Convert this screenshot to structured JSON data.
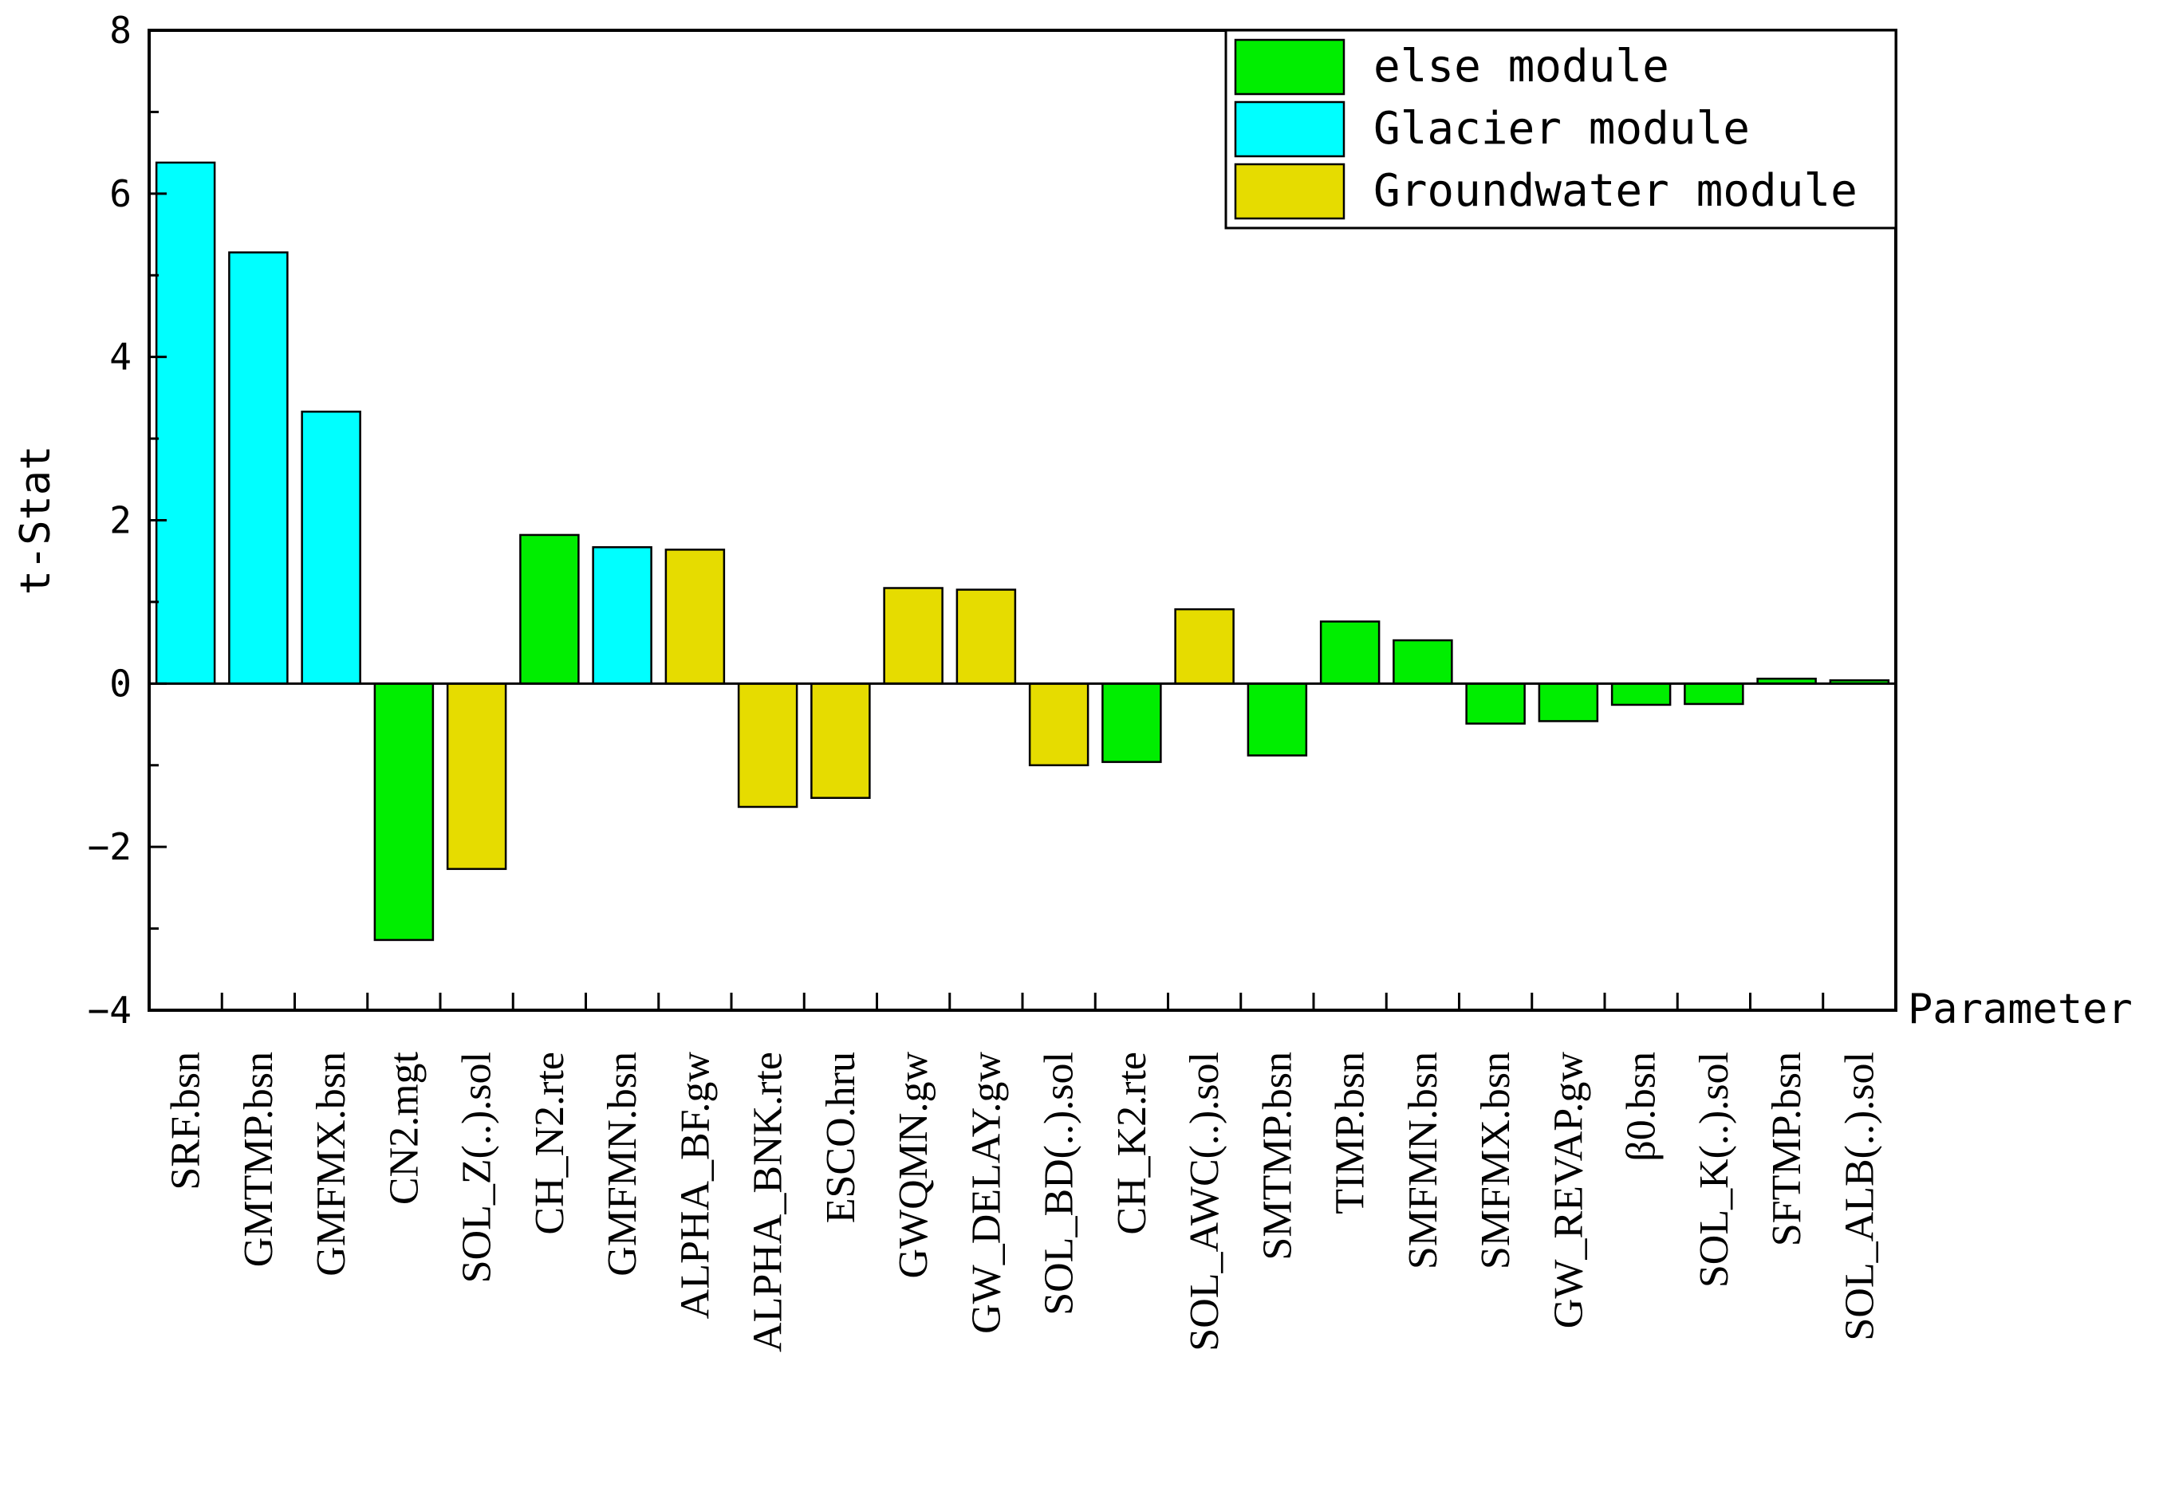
{
  "chart_data": {
    "type": "bar",
    "title": "",
    "xlabel": "Parameter",
    "ylabel": "t-Stat",
    "ylim": [
      -4,
      8
    ],
    "yticks": [
      -4,
      -2,
      0,
      2,
      4,
      6,
      8
    ],
    "ytick_labels": [
      "−4",
      "−2",
      "0",
      "2",
      "4",
      "6",
      "8"
    ],
    "grid": false,
    "legend_position": "top-right",
    "colors": {
      "else": "#00ee00",
      "glacier": "#00ffff",
      "groundwater": "#e6dc00",
      "axis": "#000000"
    },
    "legend": [
      {
        "key": "else",
        "label": "else module"
      },
      {
        "key": "glacier",
        "label": "Glacier module"
      },
      {
        "key": "groundwater",
        "label": "Groundwater module"
      }
    ],
    "categories": [
      "SRF.bsn",
      "GMTMP.bsn",
      "GMFMX.bsn",
      "CN2.mgt",
      "SOL_Z(..).sol",
      "CH_N2.rte",
      "GMFMN.bsn",
      "ALPHA_BF.gw",
      "ALPHA_BNK.rte",
      "ESCO.hru",
      "GWQMN.gw",
      "GW_DELAY.gw",
      "SOL_BD(..).sol",
      "CH_K2.rte",
      "SOL_AWC(..).sol",
      "SMTMP.bsn",
      "TIMP.bsn",
      "SMFMN.bsn",
      "SMFMX.bsn",
      "GW_REVAP.gw",
      "β0.bsn",
      "SOL_K(..).sol",
      "SFTMP.bsn",
      "SOL_ALB(..).sol"
    ],
    "values": [
      6.38,
      5.28,
      3.33,
      -3.14,
      -2.27,
      1.82,
      1.67,
      1.64,
      -1.51,
      -1.4,
      1.17,
      1.15,
      -1.0,
      -0.96,
      0.91,
      -0.88,
      0.76,
      0.53,
      -0.49,
      -0.46,
      -0.26,
      -0.25,
      0.06,
      0.04
    ],
    "groups": [
      "glacier",
      "glacier",
      "glacier",
      "else",
      "groundwater",
      "else",
      "glacier",
      "groundwater",
      "groundwater",
      "groundwater",
      "groundwater",
      "groundwater",
      "groundwater",
      "else",
      "groundwater",
      "else",
      "else",
      "else",
      "else",
      "else",
      "else",
      "else",
      "else",
      "else"
    ]
  }
}
